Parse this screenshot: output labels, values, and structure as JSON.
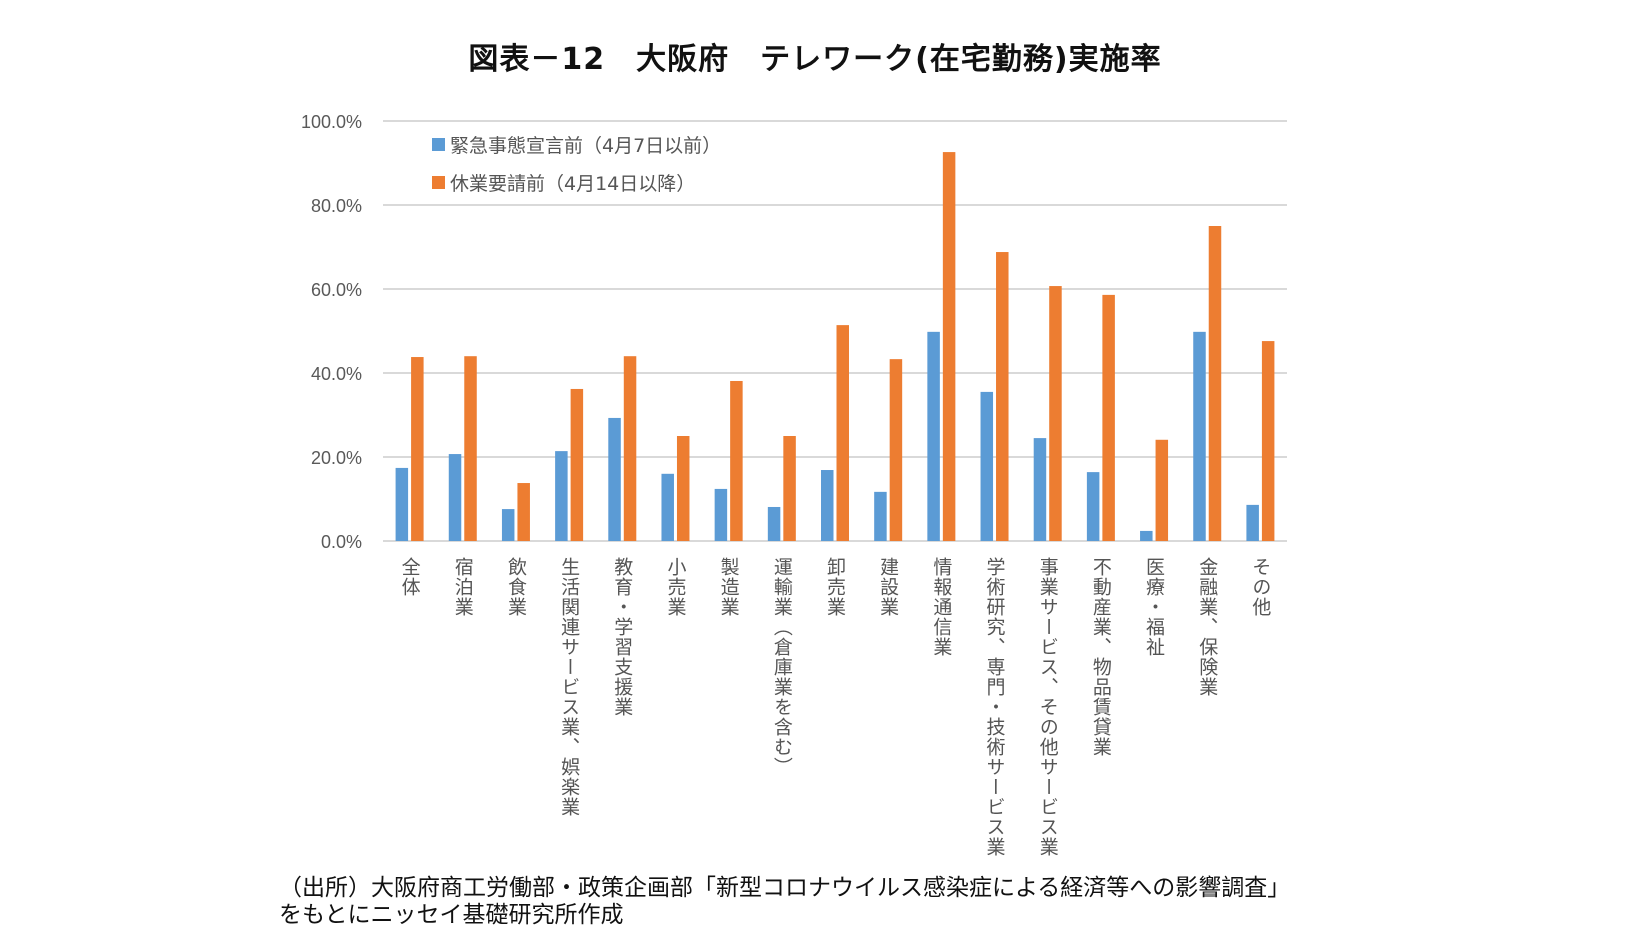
{
  "title": "図表－12　大阪府　テレワーク(在宅勤務)実施率",
  "caption": {
    "line1": "（出所）大阪府商工労働部・政策企画部「新型コロナウイルス感染症による経済等への影響調査」",
    "line2": "をもとにニッセイ基礎研究所作成"
  },
  "chart_data": {
    "type": "bar",
    "title": "図表－12　大阪府　テレワーク(在宅勤務)実施率",
    "xlabel": "",
    "ylabel": "",
    "ylim": [
      0,
      100
    ],
    "yticks": [
      0,
      20,
      40,
      60,
      80,
      100
    ],
    "ytick_labels": [
      "0.0%",
      "20.0%",
      "40.0%",
      "60.0%",
      "80.0%",
      "100.0%"
    ],
    "grid": true,
    "legend_position": "top-left",
    "categories": [
      "全体",
      "宿泊業",
      "飲食業",
      "生活関連サービス業、娯楽業",
      "教育・学習支援業",
      "小売業",
      "製造業",
      "運輸業（倉庫業を含む）",
      "卸売業",
      "建設業",
      "情報通信業",
      "学術研究、専門・技術サービス業",
      "事業サービス、その他サービス業",
      "不動産業、物品賃貸業",
      "医療・福祉",
      "金融業、保険業",
      "その他"
    ],
    "series": [
      {
        "name": "緊急事態宣言前（4月7日以前）",
        "color": "#5b9bd5",
        "values": [
          17.4,
          20.7,
          7.6,
          21.4,
          29.3,
          16.0,
          12.4,
          8.1,
          16.9,
          11.7,
          49.8,
          35.5,
          24.5,
          16.4,
          2.4,
          49.8,
          8.6
        ]
      },
      {
        "name": "休業要請前（4月14日以降）",
        "color": "#ed7d31",
        "values": [
          43.8,
          44.0,
          13.8,
          36.2,
          44.0,
          25.0,
          38.1,
          25.0,
          51.4,
          43.3,
          92.6,
          68.8,
          60.7,
          58.6,
          24.1,
          75.0,
          47.6
        ]
      }
    ]
  }
}
